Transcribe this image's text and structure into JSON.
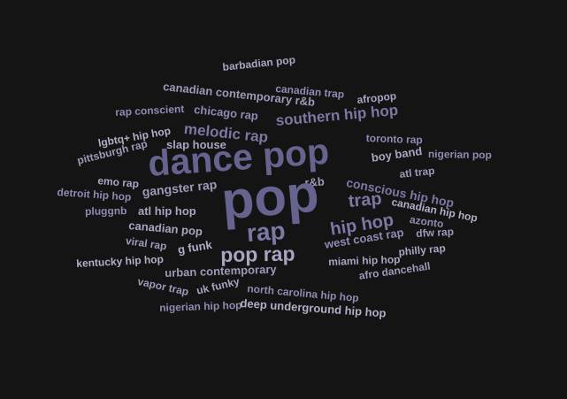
{
  "colors": {
    "background": "#141414",
    "word_colors": [
      "#66638f",
      "#7b78a3",
      "#8e8bb1",
      "#9c9ab8",
      "#a7a5c0",
      "#9593b3",
      "#b0afc6"
    ]
  },
  "words": [
    "barbadian pop",
    "canadian contemporary r&b",
    "canadian trap",
    "afropop",
    "rap conscient",
    "chicago rap",
    "southern hip hop",
    "lgbtq+ hip hop",
    "melodic rap",
    "toronto rap",
    "pittsburgh rap",
    "slap house",
    "dance pop",
    "boy band",
    "nigerian pop",
    "atl trap",
    "emo rap",
    "r&b",
    "conscious hip hop",
    "detroit hip hop",
    "gangster rap",
    "pop",
    "trap",
    "canadian hip hop",
    "pluggnb",
    "atl hip hop",
    "azonto",
    "canadian pop",
    "rap",
    "hip hop",
    "viral rap",
    "g funk",
    "west coast rap",
    "dfw rap",
    "pop rap",
    "philly rap",
    "kentucky hip hop",
    "urban contemporary",
    "miami hip hop",
    "vapor trap",
    "uk funky",
    "afro dancehall",
    "north carolina hip hop",
    "nigerian hip hop",
    "deep underground hip hop"
  ]
}
